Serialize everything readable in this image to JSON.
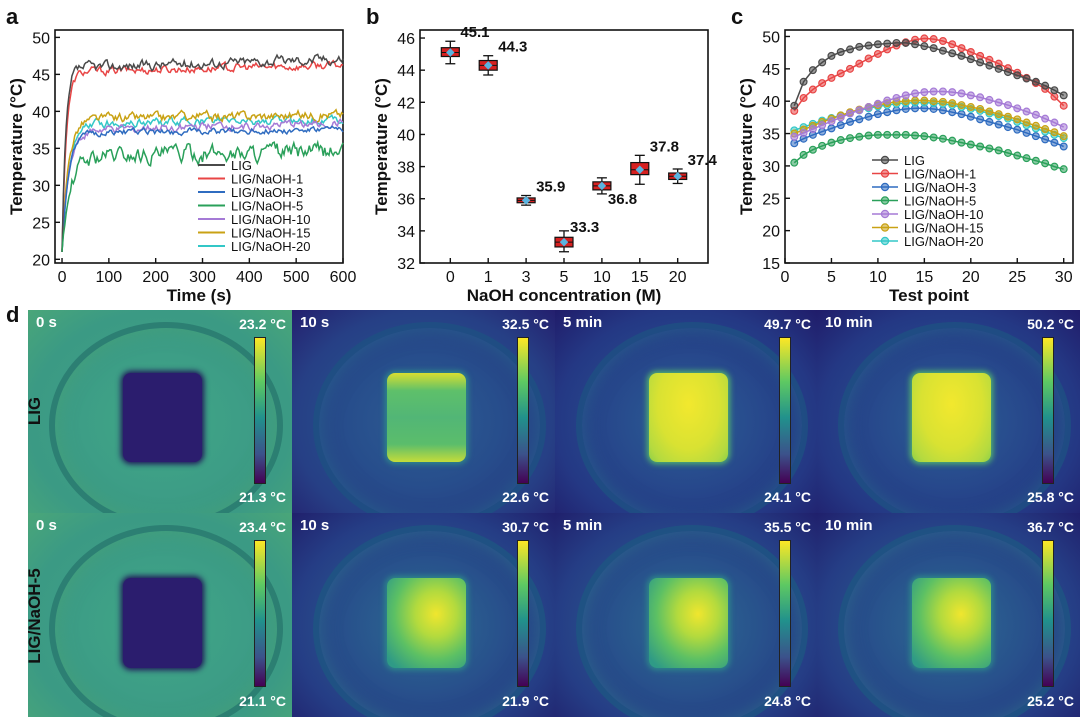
{
  "panel_letters": {
    "a": "a",
    "b": "b",
    "c": "c",
    "d": "d"
  },
  "colors": {
    "LIG": "#4a4a4a",
    "LIG/NaOH-1": "#e84545",
    "LIG/NaOH-3": "#2f6cc0",
    "LIG/NaOH-5": "#2aa05a",
    "LIG/NaOH-10": "#a57ad6",
    "LIG/NaOH-15": "#c9a214",
    "LIG/NaOH-20": "#33c7c7",
    "box_fill": "#d62020",
    "mean_marker": "#5ab4e0"
  },
  "chart_data": [
    {
      "type": "line",
      "panel": "a",
      "xlabel": "Time (s)",
      "ylabel": "Temperature (°C)",
      "xlim": [
        -15,
        600
      ],
      "ylim": [
        19.5,
        51
      ],
      "xticks": [
        0,
        100,
        200,
        300,
        400,
        500,
        600
      ],
      "yticks": [
        20,
        25,
        30,
        35,
        40,
        45,
        50
      ],
      "legend_position": "bottom-right",
      "series": [
        {
          "name": "LIG",
          "plateau": 46.5,
          "trend": 1.3,
          "noise": 0.55,
          "rise_tau": 8
        },
        {
          "name": "LIG/NaOH-1",
          "plateau": 45.8,
          "trend": 0.9,
          "noise": 0.45,
          "rise_tau": 9
        },
        {
          "name": "LIG/NaOH-3",
          "plateau": 37.3,
          "trend": 0.3,
          "noise": 0.35,
          "rise_tau": 14
        },
        {
          "name": "LIG/NaOH-5",
          "plateau": 34.3,
          "trend": 0.6,
          "noise": 0.9,
          "rise_tau": 18
        },
        {
          "name": "LIG/NaOH-10",
          "plateau": 37.9,
          "trend": 1.0,
          "noise": 0.45,
          "rise_tau": 14
        },
        {
          "name": "LIG/NaOH-15",
          "plateau": 39.3,
          "trend": 0.7,
          "noise": 0.5,
          "rise_tau": 13
        },
        {
          "name": "LIG/NaOH-20",
          "plateau": 38.6,
          "trend": 0.6,
          "noise": 0.45,
          "rise_tau": 15
        }
      ]
    },
    {
      "type": "box",
      "panel": "b",
      "xlabel": "NaOH concentration (M)",
      "ylabel": "Temperature (°C)",
      "ylim": [
        32,
        46.5
      ],
      "yticks": [
        32,
        34,
        36,
        38,
        40,
        42,
        44,
        46
      ],
      "categories": [
        "0",
        "1",
        "3",
        "5",
        "10",
        "15",
        "20"
      ],
      "boxes": [
        {
          "mean": 45.1,
          "label": "45.1",
          "q1": 44.85,
          "q3": 45.4,
          "min": 44.4,
          "max": 45.8
        },
        {
          "mean": 44.3,
          "label": "44.3",
          "q1": 44.0,
          "q3": 44.6,
          "min": 43.7,
          "max": 44.9
        },
        {
          "mean": 35.9,
          "label": "35.9",
          "q1": 35.75,
          "q3": 36.05,
          "min": 35.6,
          "max": 36.2
        },
        {
          "mean": 33.3,
          "label": "33.3",
          "q1": 33.0,
          "q3": 33.6,
          "min": 32.7,
          "max": 34.0
        },
        {
          "mean": 36.8,
          "label": "36.8",
          "q1": 36.55,
          "q3": 37.05,
          "min": 36.3,
          "max": 37.3
        },
        {
          "mean": 37.8,
          "label": "37.8",
          "q1": 37.5,
          "q3": 38.25,
          "min": 36.9,
          "max": 38.7
        },
        {
          "mean": 37.4,
          "label": "37.4",
          "q1": 37.2,
          "q3": 37.6,
          "min": 36.95,
          "max": 37.85
        }
      ]
    },
    {
      "type": "line",
      "panel": "c",
      "xlabel": "Test point",
      "ylabel": "Temperature (°C)",
      "xlim": [
        0,
        31
      ],
      "ylim": [
        15,
        51
      ],
      "xticks": [
        0,
        5,
        10,
        15,
        20,
        25,
        30
      ],
      "yticks": [
        15,
        20,
        25,
        30,
        35,
        40,
        45,
        50
      ],
      "legend_position": "bottom-left",
      "series": [
        {
          "name": "LIG",
          "values": [
            39.3,
            43.0,
            44.8,
            46.0,
            47.0,
            47.6,
            48.0,
            48.4,
            48.6,
            48.8,
            48.9,
            49.0,
            49.0,
            48.8,
            48.5,
            48.2,
            47.8,
            47.4,
            47.0,
            46.5,
            46.0,
            45.5,
            45.0,
            44.5,
            44.0,
            43.5,
            43.0,
            42.4,
            41.7,
            40.9
          ]
        },
        {
          "name": "LIG/NaOH-1",
          "values": [
            38.5,
            40.5,
            41.8,
            42.8,
            43.6,
            44.3,
            45.0,
            45.8,
            46.6,
            47.3,
            48.0,
            48.6,
            49.1,
            49.5,
            49.7,
            49.6,
            49.3,
            48.8,
            48.2,
            47.6,
            47.0,
            46.4,
            45.8,
            45.1,
            44.4,
            43.6,
            42.8,
            41.9,
            40.7,
            39.3
          ]
        },
        {
          "name": "LIG/NaOH-3",
          "values": [
            33.5,
            34.2,
            34.8,
            35.3,
            35.8,
            36.3,
            36.8,
            37.2,
            37.6,
            38.0,
            38.3,
            38.6,
            38.8,
            38.9,
            38.9,
            38.8,
            38.6,
            38.3,
            38.0,
            37.6,
            37.2,
            36.8,
            36.4,
            36.0,
            35.6,
            35.1,
            34.6,
            34.1,
            33.6,
            33.0
          ]
        },
        {
          "name": "LIG/NaOH-5",
          "values": [
            30.5,
            31.7,
            32.5,
            33.1,
            33.6,
            34.0,
            34.3,
            34.5,
            34.7,
            34.8,
            34.8,
            34.8,
            34.8,
            34.7,
            34.6,
            34.4,
            34.2,
            33.9,
            33.6,
            33.3,
            33.0,
            32.7,
            32.4,
            32.0,
            31.6,
            31.2,
            30.8,
            30.4,
            29.9,
            29.5
          ]
        },
        {
          "name": "LIG/NaOH-10",
          "values": [
            34.5,
            35.1,
            35.7,
            36.3,
            36.9,
            37.5,
            38.1,
            38.6,
            39.1,
            39.6,
            40.1,
            40.5,
            40.9,
            41.2,
            41.4,
            41.5,
            41.5,
            41.4,
            41.2,
            40.9,
            40.6,
            40.2,
            39.8,
            39.4,
            38.9,
            38.4,
            37.9,
            37.3,
            36.7,
            36.0
          ]
        },
        {
          "name": "LIG/NaOH-15",
          "values": [
            35.0,
            35.6,
            36.2,
            36.8,
            37.3,
            37.8,
            38.3,
            38.7,
            39.1,
            39.4,
            39.7,
            39.9,
            40.0,
            40.1,
            40.1,
            40.0,
            39.9,
            39.7,
            39.4,
            39.1,
            38.8,
            38.4,
            38.0,
            37.6,
            37.2,
            36.7,
            36.2,
            35.7,
            35.2,
            34.6
          ]
        },
        {
          "name": "LIG/NaOH-20",
          "values": [
            35.5,
            36.0,
            36.5,
            37.0,
            37.4,
            37.8,
            38.2,
            38.6,
            38.9,
            39.2,
            39.4,
            39.6,
            39.7,
            39.8,
            39.8,
            39.7,
            39.6,
            39.4,
            39.1,
            38.8,
            38.5,
            38.1,
            37.7,
            37.3,
            36.8,
            36.3,
            35.8,
            35.3,
            34.8,
            34.3
          ]
        }
      ]
    }
  ],
  "thermal": {
    "rows": [
      {
        "label": "LIG",
        "panels": [
          {
            "time": "0 s",
            "max": "23.2 °C",
            "min": "21.3 °C",
            "state": "cold"
          },
          {
            "time": "10 s",
            "max": "32.5 °C",
            "min": "22.6 °C",
            "state": "lig10"
          },
          {
            "time": "5 min",
            "max": "49.7 °C",
            "min": "24.1 °C",
            "state": "hot"
          },
          {
            "time": "10 min",
            "max": "50.2 °C",
            "min": "25.8 °C",
            "state": "hot"
          }
        ]
      },
      {
        "label": "LIG/NaOH-5",
        "panels": [
          {
            "time": "0 s",
            "max": "23.4 °C",
            "min": "21.1 °C",
            "state": "cold"
          },
          {
            "time": "10 s",
            "max": "30.7 °C",
            "min": "21.9 °C",
            "state": "naoh"
          },
          {
            "time": "5 min",
            "max": "35.5 °C",
            "min": "24.8 °C",
            "state": "naoh"
          },
          {
            "time": "10 min",
            "max": "36.7 °C",
            "min": "25.2 °C",
            "state": "naoh"
          }
        ]
      }
    ]
  }
}
